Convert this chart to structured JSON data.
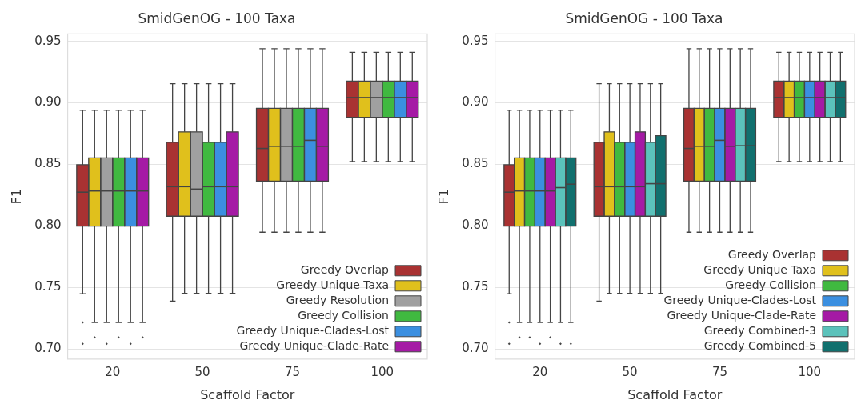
{
  "chart_data": [
    {
      "type": "box",
      "title": "SmidGenOG - 100 Taxa",
      "xlabel": "Scaffold Factor",
      "ylabel": "F1",
      "categories": [
        "20",
        "50",
        "75",
        "100"
      ],
      "ylim": [
        0.692,
        0.956
      ],
      "yticks": [
        {
          "value": 0.7,
          "label": "0.70"
        },
        0.75,
        {
          "value": 0.8,
          "label": "0.80"
        },
        0.85,
        {
          "value": 0.9,
          "label": "0.90"
        },
        0.95
      ],
      "grid": "y",
      "legend": "bottom right",
      "series": [
        {
          "name": "Greedy Overlap",
          "color": "#a93232",
          "boxes": [
            {
              "low": 0.745,
              "q1": 0.8,
              "median": 0.8275,
              "q3": 0.8498,
              "high": 0.894,
              "outliers": [
                0.7217,
                0.7044
              ]
            },
            {
              "low": 0.739,
              "q1": 0.808,
              "median": 0.832,
              "q3": 0.868,
              "high": 0.9156
            },
            {
              "low": 0.795,
              "q1": 0.8364,
              "median": 0.863,
              "q3": 0.8956,
              "high": 0.944
            },
            {
              "low": 0.8524,
              "q1": 0.8883,
              "median": 0.9043,
              "q3": 0.9176,
              "high": 0.9411
            }
          ]
        },
        {
          "name": "Greedy Unique Taxa",
          "color": "#e0c01c",
          "boxes": [
            {
              "low": 0.7217,
              "q1": 0.8,
              "median": 0.8285,
              "q3": 0.8553,
              "high": 0.894,
              "outliers": [
                0.7095
              ]
            },
            {
              "low": 0.7453,
              "q1": 0.808,
              "median": 0.832,
              "q3": 0.8765,
              "high": 0.9156
            },
            {
              "low": 0.795,
              "q1": 0.8364,
              "median": 0.8648,
              "q3": 0.8956,
              "high": 0.944
            },
            {
              "low": 0.8524,
              "q1": 0.8883,
              "median": 0.9043,
              "q3": 0.9176,
              "high": 0.9411
            }
          ]
        },
        {
          "name": "Greedy Resolution",
          "color": "#a0a0a0",
          "boxes": [
            {
              "low": 0.7217,
              "q1": 0.8,
              "median": 0.8285,
              "q3": 0.8553,
              "high": 0.894,
              "outliers": [
                0.7044
              ]
            },
            {
              "low": 0.7453,
              "q1": 0.808,
              "median": 0.83,
              "q3": 0.8765,
              "high": 0.9156
            },
            {
              "low": 0.795,
              "q1": 0.8364,
              "median": 0.8648,
              "q3": 0.8956,
              "high": 0.944
            },
            {
              "low": 0.8524,
              "q1": 0.8883,
              "median": 0.9043,
              "q3": 0.9176,
              "high": 0.9411
            }
          ]
        },
        {
          "name": "Greedy Collision",
          "color": "#40b940",
          "boxes": [
            {
              "low": 0.7217,
              "q1": 0.8,
              "median": 0.8285,
              "q3": 0.8553,
              "high": 0.894,
              "outliers": [
                0.7095
              ]
            },
            {
              "low": 0.7453,
              "q1": 0.808,
              "median": 0.832,
              "q3": 0.868,
              "high": 0.9156
            },
            {
              "low": 0.795,
              "q1": 0.8364,
              "median": 0.8648,
              "q3": 0.8956,
              "high": 0.944
            },
            {
              "low": 0.8524,
              "q1": 0.8883,
              "median": 0.9043,
              "q3": 0.9176,
              "high": 0.9411
            }
          ]
        },
        {
          "name": "Greedy Unique-Clades-Lost",
          "color": "#3b8fe0",
          "boxes": [
            {
              "low": 0.7217,
              "q1": 0.8,
              "median": 0.8285,
              "q3": 0.8553,
              "high": 0.894,
              "outliers": [
                0.7044
              ]
            },
            {
              "low": 0.7453,
              "q1": 0.808,
              "median": 0.832,
              "q3": 0.868,
              "high": 0.9156
            },
            {
              "low": 0.795,
              "q1": 0.8364,
              "median": 0.8696,
              "q3": 0.8956,
              "high": 0.944
            },
            {
              "low": 0.8524,
              "q1": 0.8883,
              "median": 0.9043,
              "q3": 0.9176,
              "high": 0.9411
            }
          ]
        },
        {
          "name": "Greedy Unique-Clade-Rate",
          "color": "#a51aa5",
          "boxes": [
            {
              "low": 0.7217,
              "q1": 0.8,
              "median": 0.8285,
              "q3": 0.8553,
              "high": 0.894,
              "outliers": [
                0.7095
              ]
            },
            {
              "low": 0.7453,
              "q1": 0.808,
              "median": 0.832,
              "q3": 0.8765,
              "high": 0.9156
            },
            {
              "low": 0.795,
              "q1": 0.8364,
              "median": 0.8648,
              "q3": 0.8956,
              "high": 0.944
            },
            {
              "low": 0.8524,
              "q1": 0.8883,
              "median": 0.9043,
              "q3": 0.9176,
              "high": 0.9411
            }
          ]
        }
      ]
    },
    {
      "type": "box",
      "title": "SmidGenOG - 100 Taxa",
      "xlabel": "Scaffold Factor",
      "ylabel": "F1",
      "categories": [
        "20",
        "50",
        "75",
        "100"
      ],
      "ylim": [
        0.692,
        0.956
      ],
      "yticks": [
        {
          "value": 0.7,
          "label": "0.70"
        },
        0.75,
        {
          "value": 0.8,
          "label": "0.80"
        },
        0.85,
        {
          "value": 0.9,
          "label": "0.90"
        },
        0.95
      ],
      "grid": "y",
      "legend": "bottom right",
      "series": [
        {
          "name": "Greedy Overlap",
          "color": "#a93232",
          "boxes": [
            {
              "low": 0.745,
              "q1": 0.8,
              "median": 0.8275,
              "q3": 0.8498,
              "high": 0.894,
              "outliers": [
                0.7217,
                0.7044
              ]
            },
            {
              "low": 0.739,
              "q1": 0.808,
              "median": 0.832,
              "q3": 0.868,
              "high": 0.9156
            },
            {
              "low": 0.795,
              "q1": 0.8364,
              "median": 0.863,
              "q3": 0.8956,
              "high": 0.944
            },
            {
              "low": 0.8524,
              "q1": 0.8883,
              "median": 0.9043,
              "q3": 0.9176,
              "high": 0.9411
            }
          ]
        },
        {
          "name": "Greedy Unique Taxa",
          "color": "#e0c01c",
          "boxes": [
            {
              "low": 0.7217,
              "q1": 0.8,
              "median": 0.8285,
              "q3": 0.8553,
              "high": 0.894,
              "outliers": [
                0.7095
              ]
            },
            {
              "low": 0.7453,
              "q1": 0.808,
              "median": 0.832,
              "q3": 0.8765,
              "high": 0.9156
            },
            {
              "low": 0.795,
              "q1": 0.8364,
              "median": 0.8648,
              "q3": 0.8956,
              "high": 0.944
            },
            {
              "low": 0.8524,
              "q1": 0.8883,
              "median": 0.9043,
              "q3": 0.9176,
              "high": 0.9411
            }
          ]
        },
        {
          "name": "Greedy Collision",
          "color": "#40b940",
          "boxes": [
            {
              "low": 0.7217,
              "q1": 0.8,
              "median": 0.8285,
              "q3": 0.8553,
              "high": 0.894,
              "outliers": [
                0.7095
              ]
            },
            {
              "low": 0.7453,
              "q1": 0.808,
              "median": 0.832,
              "q3": 0.868,
              "high": 0.9156
            },
            {
              "low": 0.795,
              "q1": 0.8364,
              "median": 0.8648,
              "q3": 0.8956,
              "high": 0.944
            },
            {
              "low": 0.8524,
              "q1": 0.8883,
              "median": 0.9043,
              "q3": 0.9176,
              "high": 0.9411
            }
          ]
        },
        {
          "name": "Greedy Unique-Clades-Lost",
          "color": "#3b8fe0",
          "boxes": [
            {
              "low": 0.7217,
              "q1": 0.8,
              "median": 0.8285,
              "q3": 0.8553,
              "high": 0.894,
              "outliers": [
                0.7044
              ]
            },
            {
              "low": 0.7453,
              "q1": 0.808,
              "median": 0.832,
              "q3": 0.868,
              "high": 0.9156
            },
            {
              "low": 0.795,
              "q1": 0.8364,
              "median": 0.8696,
              "q3": 0.8956,
              "high": 0.944
            },
            {
              "low": 0.8524,
              "q1": 0.8883,
              "median": 0.9043,
              "q3": 0.9176,
              "high": 0.9411
            }
          ]
        },
        {
          "name": "Greedy Unique-Clade-Rate",
          "color": "#a51aa5",
          "boxes": [
            {
              "low": 0.7217,
              "q1": 0.8,
              "median": 0.8285,
              "q3": 0.8553,
              "high": 0.894,
              "outliers": [
                0.7095
              ]
            },
            {
              "low": 0.7453,
              "q1": 0.808,
              "median": 0.832,
              "q3": 0.8765,
              "high": 0.9156
            },
            {
              "low": 0.795,
              "q1": 0.8364,
              "median": 0.8648,
              "q3": 0.8956,
              "high": 0.944
            },
            {
              "low": 0.8524,
              "q1": 0.8883,
              "median": 0.9043,
              "q3": 0.9176,
              "high": 0.9411
            }
          ]
        },
        {
          "name": "Greedy Combined-3",
          "color": "#5bc2bb",
          "boxes": [
            {
              "low": 0.7217,
              "q1": 0.8,
              "median": 0.8312,
              "q3": 0.8553,
              "high": 0.894,
              "outliers": [
                0.7044
              ]
            },
            {
              "low": 0.7453,
              "q1": 0.808,
              "median": 0.8344,
              "q3": 0.868,
              "high": 0.9156
            },
            {
              "low": 0.795,
              "q1": 0.8364,
              "median": 0.8652,
              "q3": 0.8956,
              "high": 0.944
            },
            {
              "low": 0.8524,
              "q1": 0.8883,
              "median": 0.9043,
              "q3": 0.9176,
              "high": 0.9411
            }
          ]
        },
        {
          "name": "Greedy Combined-5",
          "color": "#11706e",
          "boxes": [
            {
              "low": 0.7217,
              "q1": 0.8,
              "median": 0.834,
              "q3": 0.8553,
              "high": 0.894,
              "outliers": [
                0.7044
              ]
            },
            {
              "low": 0.7453,
              "q1": 0.808,
              "median": 0.8344,
              "q3": 0.8733,
              "high": 0.9156
            },
            {
              "low": 0.795,
              "q1": 0.8364,
              "median": 0.8652,
              "q3": 0.8956,
              "high": 0.944
            },
            {
              "low": 0.8524,
              "q1": 0.8883,
              "median": 0.9043,
              "q3": 0.9176,
              "high": 0.9411
            }
          ]
        }
      ]
    }
  ]
}
